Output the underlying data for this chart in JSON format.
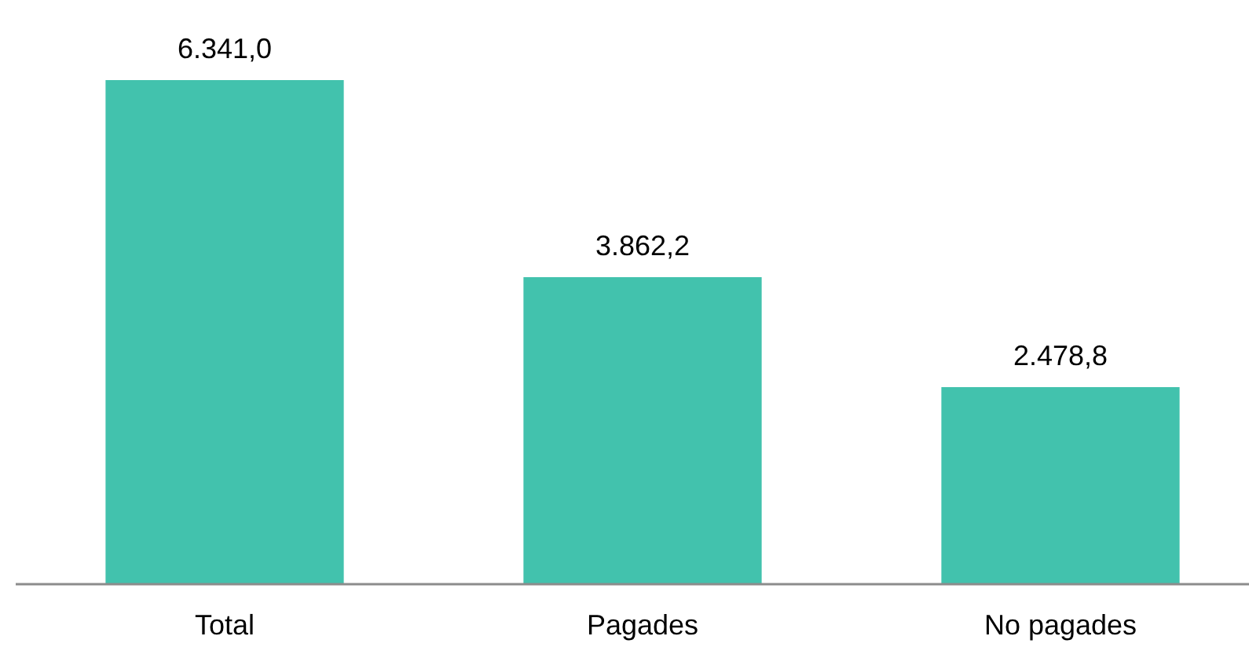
{
  "chart_data": {
    "type": "bar",
    "categories": [
      "Total",
      "Pagades",
      "No pagades"
    ],
    "values": [
      6341.0,
      3862.2,
      2478.8
    ],
    "value_labels": [
      "6.341,0",
      "3.862,2",
      "2.478,8"
    ],
    "color": "#42c2ad"
  }
}
